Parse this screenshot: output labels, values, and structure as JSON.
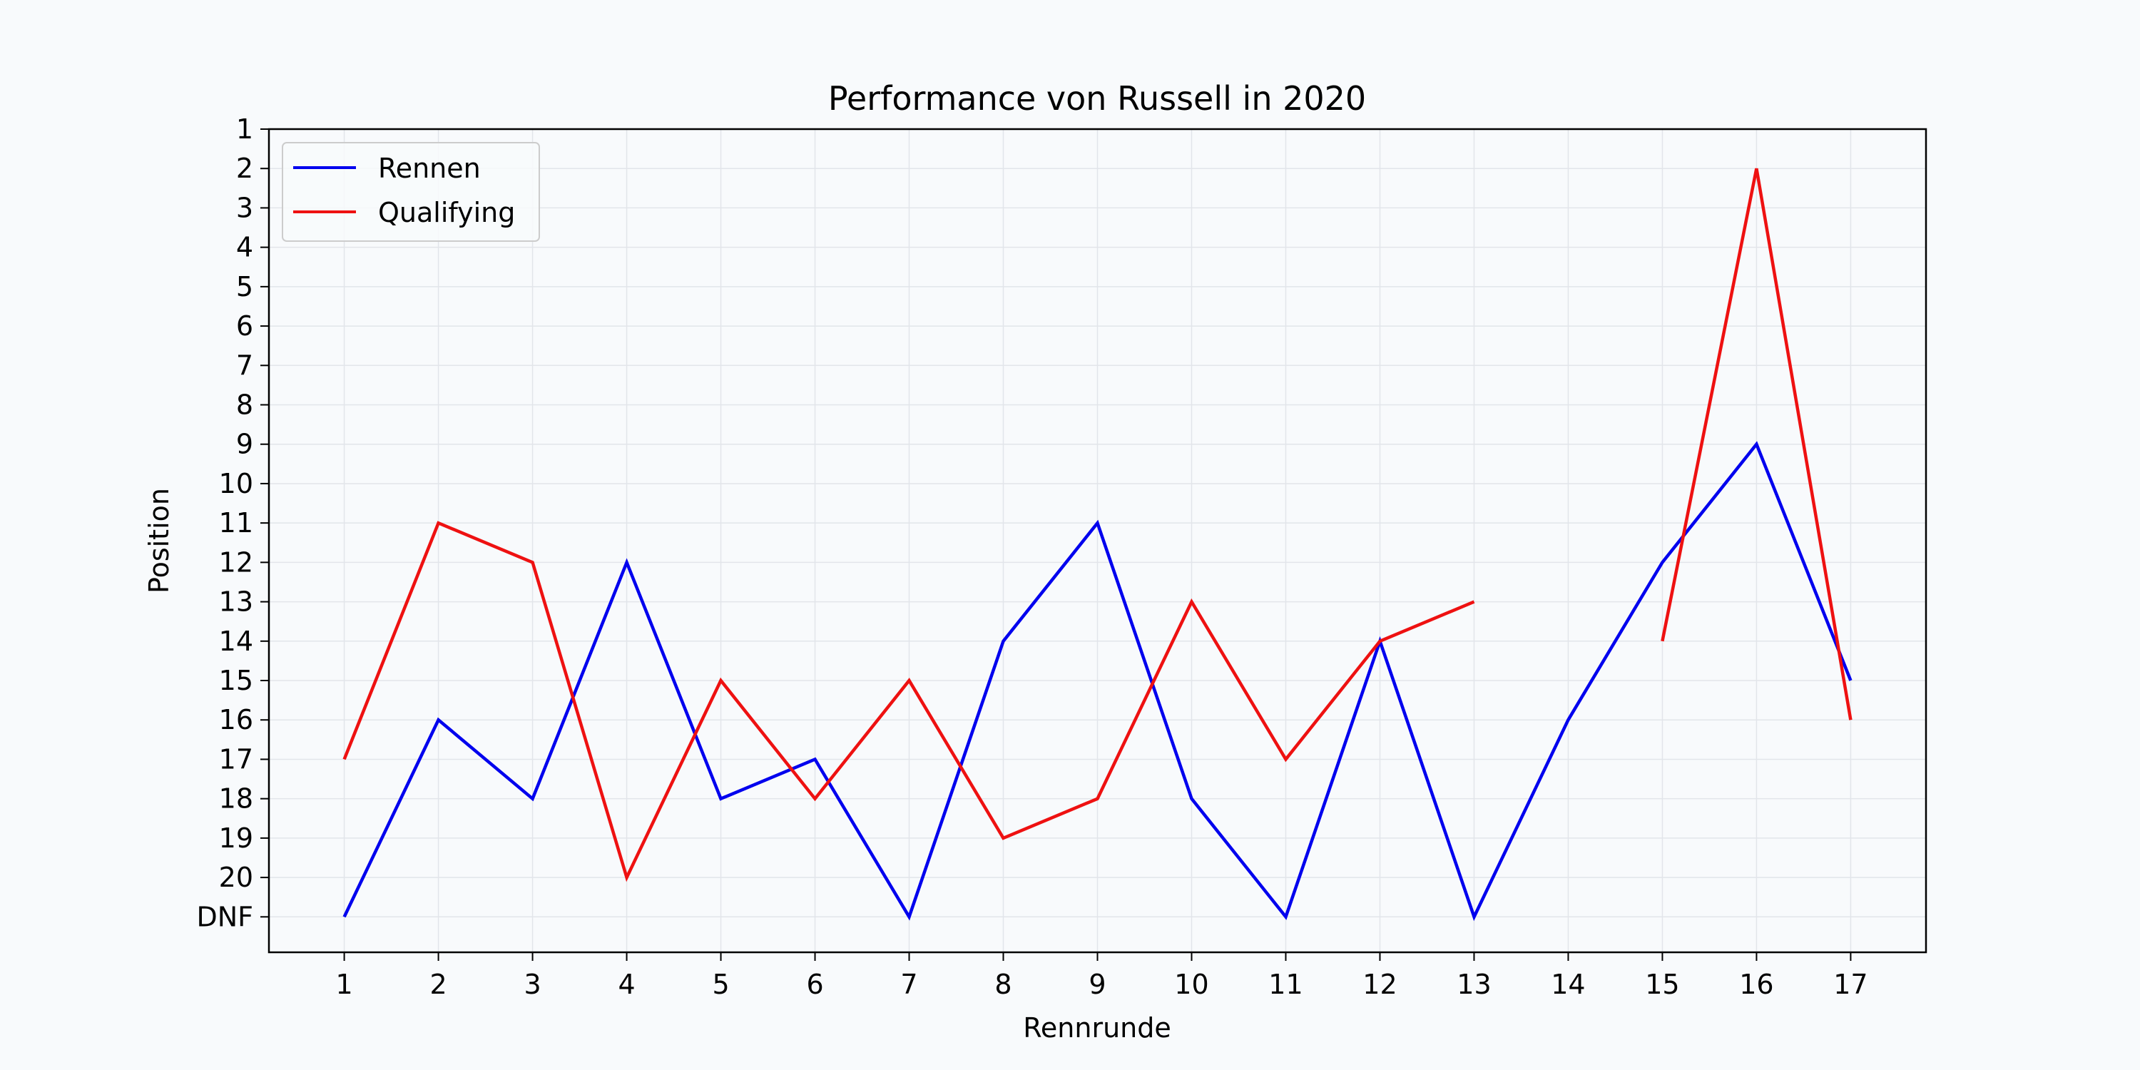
{
  "chart_data": {
    "type": "line",
    "title": "Performance von Russell in 2020",
    "xlabel": "Rennrunde",
    "ylabel": "Position",
    "x": [
      1,
      2,
      3,
      4,
      5,
      6,
      7,
      8,
      9,
      10,
      11,
      12,
      13,
      14,
      15,
      16,
      17
    ],
    "xlim": [
      0.2,
      17.8
    ],
    "ylim": [
      1,
      21.9
    ],
    "y_inverted": true,
    "y_ticks": [
      1,
      2,
      3,
      4,
      5,
      6,
      7,
      8,
      9,
      10,
      11,
      12,
      13,
      14,
      15,
      16,
      17,
      18,
      19,
      20,
      21
    ],
    "y_tick_labels": [
      "1",
      "2",
      "3",
      "4",
      "5",
      "6",
      "7",
      "8",
      "9",
      "10",
      "11",
      "12",
      "13",
      "14",
      "15",
      "16",
      "17",
      "18",
      "19",
      "20",
      "DNF"
    ],
    "grid": true,
    "legend_position": "top-left",
    "series": [
      {
        "name": "Rennen",
        "color": "#0000ee",
        "values": [
          21,
          16,
          18,
          12,
          18,
          17,
          21,
          14,
          11,
          18,
          21,
          14,
          21,
          16,
          12,
          9,
          15
        ]
      },
      {
        "name": "Qualifying",
        "color": "#ee1111",
        "values": [
          17,
          11,
          12,
          20,
          15,
          18,
          15,
          19,
          18,
          13,
          17,
          14,
          13,
          null,
          14,
          2,
          16
        ]
      }
    ]
  }
}
